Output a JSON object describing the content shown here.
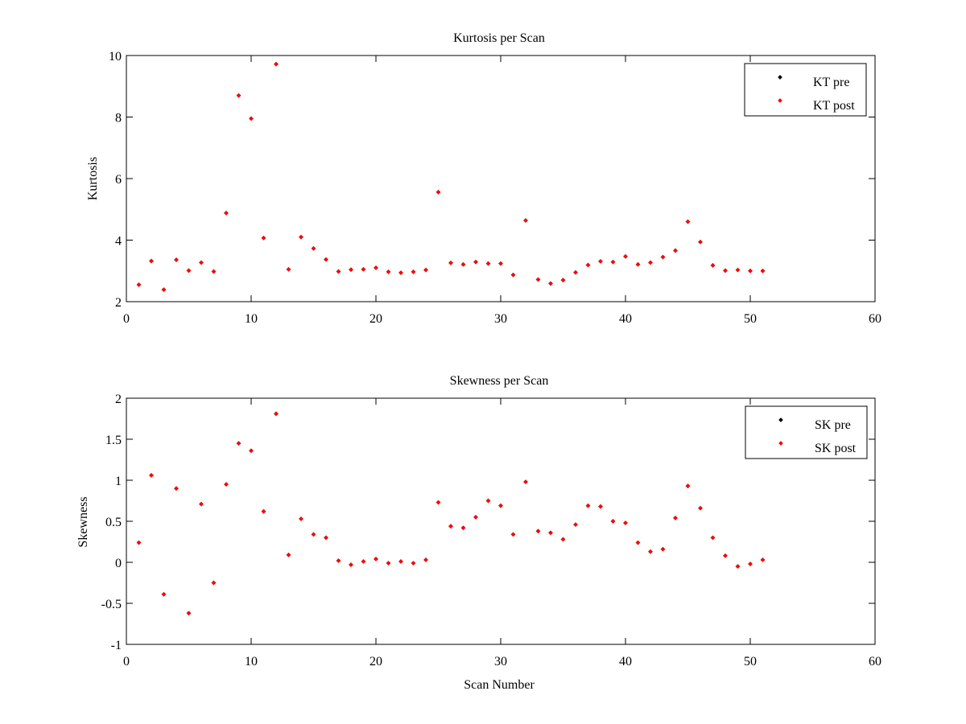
{
  "chart_data": [
    {
      "type": "scatter",
      "title": "Kurtosis per Scan",
      "xlabel": "",
      "ylabel": "Kurtosis",
      "xlim": [
        0,
        60
      ],
      "ylim": [
        2,
        10
      ],
      "xticks": [
        "0",
        "10",
        "20",
        "30",
        "40",
        "50",
        "60"
      ],
      "yticks": [
        "2",
        "4",
        "6",
        "8",
        "10"
      ],
      "legend_position": "top-right",
      "grid": false,
      "series": [
        {
          "name": "KT pre",
          "color": "#000000",
          "x": [
            1,
            2,
            3,
            4,
            5,
            6,
            7,
            8,
            9,
            10,
            11,
            12,
            13,
            14,
            15,
            16,
            17,
            18,
            19,
            20,
            21,
            22,
            23,
            24,
            25,
            26,
            27,
            28,
            29,
            30,
            31,
            32,
            33,
            34,
            35,
            36,
            37,
            38,
            39,
            40,
            41,
            42,
            43,
            44,
            45,
            46,
            47,
            48,
            49,
            50,
            51
          ],
          "y": [
            2.55,
            3.32,
            2.39,
            3.36,
            3.01,
            3.27,
            2.98,
            4.88,
            8.7,
            7.95,
            4.07,
            9.72,
            3.05,
            4.1,
            3.73,
            3.37,
            2.98,
            3.04,
            3.05,
            3.1,
            2.97,
            2.94,
            2.97,
            3.03,
            5.56,
            3.26,
            3.21,
            3.29,
            3.24,
            3.24,
            2.87,
            4.64,
            2.72,
            2.59,
            2.7,
            2.95,
            3.19,
            3.31,
            3.29,
            3.47,
            3.21,
            3.27,
            3.45,
            3.66,
            4.6,
            3.94,
            3.18,
            3.01,
            3.03,
            3.0,
            3.0
          ]
        },
        {
          "name": "KT post",
          "color": "#ff0000",
          "x": [
            1,
            2,
            3,
            4,
            5,
            6,
            7,
            8,
            9,
            10,
            11,
            12,
            13,
            14,
            15,
            16,
            17,
            18,
            19,
            20,
            21,
            22,
            23,
            24,
            25,
            26,
            27,
            28,
            29,
            30,
            31,
            32,
            33,
            34,
            35,
            36,
            37,
            38,
            39,
            40,
            41,
            42,
            43,
            44,
            45,
            46,
            47,
            48,
            49,
            50,
            51
          ],
          "y": [
            2.55,
            3.32,
            2.39,
            3.36,
            3.01,
            3.27,
            2.98,
            4.88,
            8.7,
            7.95,
            4.07,
            9.72,
            3.05,
            4.1,
            3.73,
            3.37,
            2.98,
            3.04,
            3.05,
            3.1,
            2.97,
            2.94,
            2.97,
            3.03,
            5.56,
            3.26,
            3.21,
            3.29,
            3.24,
            3.24,
            2.87,
            4.64,
            2.72,
            2.59,
            2.7,
            2.95,
            3.19,
            3.31,
            3.29,
            3.47,
            3.21,
            3.27,
            3.45,
            3.66,
            4.6,
            3.94,
            3.18,
            3.01,
            3.03,
            3.0,
            3.0
          ]
        }
      ]
    },
    {
      "type": "scatter",
      "title": "Skewness per Scan",
      "xlabel": "Scan Number",
      "ylabel": "Skewness",
      "xlim": [
        0,
        60
      ],
      "ylim": [
        -1,
        2
      ],
      "xticks": [
        "0",
        "10",
        "20",
        "30",
        "40",
        "50",
        "60"
      ],
      "yticks": [
        "-1",
        "-0.5",
        "0",
        "0.5",
        "1",
        "1.5",
        "2"
      ],
      "legend_position": "top-right",
      "grid": false,
      "series": [
        {
          "name": "SK pre",
          "color": "#000000",
          "x": [
            1,
            2,
            3,
            4,
            5,
            6,
            7,
            8,
            9,
            10,
            11,
            12,
            13,
            14,
            15,
            16,
            17,
            18,
            19,
            20,
            21,
            22,
            23,
            24,
            25,
            26,
            27,
            28,
            29,
            30,
            31,
            32,
            33,
            34,
            35,
            36,
            37,
            38,
            39,
            40,
            41,
            42,
            43,
            44,
            45,
            46,
            47,
            48,
            49,
            50,
            51
          ],
          "y": [
            0.24,
            1.06,
            -0.39,
            0.9,
            -0.62,
            0.71,
            -0.25,
            0.95,
            1.45,
            1.36,
            0.62,
            1.81,
            0.09,
            0.53,
            0.34,
            0.3,
            0.02,
            -0.03,
            0.01,
            0.04,
            -0.01,
            0.01,
            -0.01,
            0.03,
            0.73,
            0.44,
            0.42,
            0.55,
            0.75,
            0.69,
            0.34,
            0.98,
            0.38,
            0.36,
            0.28,
            0.46,
            0.69,
            0.68,
            0.5,
            0.48,
            0.24,
            0.13,
            0.16,
            0.54,
            0.93,
            0.66,
            0.3,
            0.08,
            -0.05,
            -0.02,
            0.03
          ]
        },
        {
          "name": "SK post",
          "color": "#ff0000",
          "x": [
            1,
            2,
            3,
            4,
            5,
            6,
            7,
            8,
            9,
            10,
            11,
            12,
            13,
            14,
            15,
            16,
            17,
            18,
            19,
            20,
            21,
            22,
            23,
            24,
            25,
            26,
            27,
            28,
            29,
            30,
            31,
            32,
            33,
            34,
            35,
            36,
            37,
            38,
            39,
            40,
            41,
            42,
            43,
            44,
            45,
            46,
            47,
            48,
            49,
            50,
            51
          ],
          "y": [
            0.24,
            1.06,
            -0.39,
            0.9,
            -0.62,
            0.71,
            -0.25,
            0.95,
            1.45,
            1.36,
            0.62,
            1.81,
            0.09,
            0.53,
            0.34,
            0.3,
            0.02,
            -0.03,
            0.01,
            0.04,
            -0.01,
            0.01,
            -0.01,
            0.03,
            0.73,
            0.44,
            0.42,
            0.55,
            0.75,
            0.69,
            0.34,
            0.98,
            0.38,
            0.36,
            0.28,
            0.46,
            0.69,
            0.68,
            0.5,
            0.48,
            0.24,
            0.13,
            0.16,
            0.54,
            0.93,
            0.66,
            0.3,
            0.08,
            -0.05,
            -0.02,
            0.03
          ]
        }
      ]
    }
  ]
}
